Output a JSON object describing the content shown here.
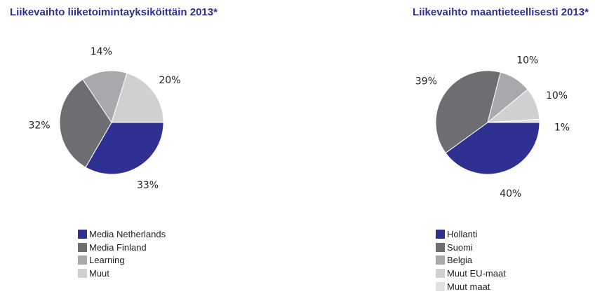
{
  "chart_data": [
    {
      "type": "pie",
      "title": "Liikevaihto liiketoimintayksiköittäin 2013*",
      "slices": [
        {
          "label": "Media Netherlands",
          "value": 33,
          "text": "33%",
          "color": "#2e3092"
        },
        {
          "label": "Media Finland",
          "value": 32,
          "text": "32%",
          "color": "#6d6e71"
        },
        {
          "label": "Learning",
          "value": 14,
          "text": "14%",
          "color": "#a7a9ac"
        },
        {
          "label": "Muut",
          "value": 20,
          "text": "20%",
          "color": "#cfd0d2"
        }
      ]
    },
    {
      "type": "pie",
      "title": "Liikevaihto maantieteellisesti 2013*",
      "slices": [
        {
          "label": "Hollanti",
          "value": 40,
          "text": "40%",
          "color": "#2e3092"
        },
        {
          "label": "Suomi",
          "value": 39,
          "text": "39%",
          "color": "#6d6e71"
        },
        {
          "label": "Belgia",
          "value": 10,
          "text": "10%",
          "color": "#a7a9ac"
        },
        {
          "label": "Muut EU-maat",
          "value": 10,
          "text": "10%",
          "color": "#cfd0d2"
        },
        {
          "label": "Muut maat",
          "value": 1,
          "text": "1%",
          "color": "#e0e1e2"
        }
      ]
    }
  ]
}
